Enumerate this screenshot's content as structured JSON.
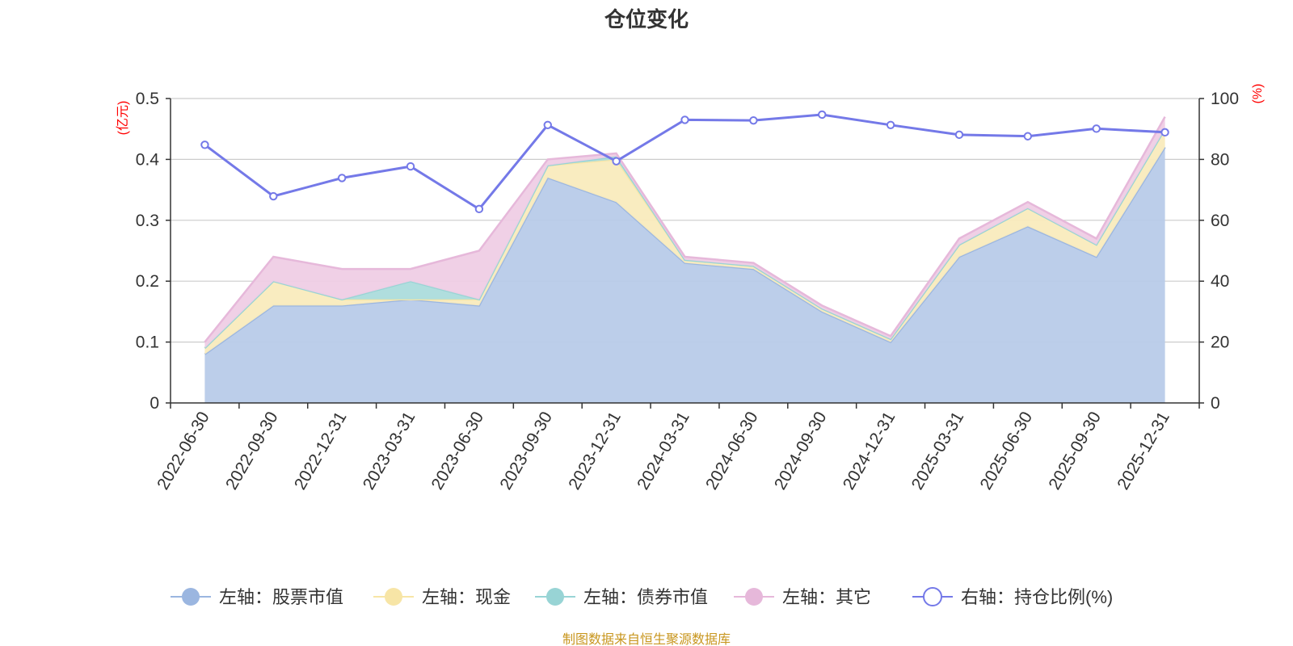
{
  "chart_data": {
    "type": "area",
    "title": "仓位变化",
    "left_axis": {
      "unit": "(亿元)",
      "ylim": [
        0,
        0.5
      ],
      "ticks": [
        "0",
        "0.1",
        "0.2",
        "0.3",
        "0.4",
        "0.5"
      ]
    },
    "right_axis": {
      "unit": "(%)",
      "ylim": [
        0,
        100
      ],
      "ticks": [
        "0",
        "20",
        "40",
        "60",
        "80",
        "100"
      ]
    },
    "categories": [
      "2022-06-30",
      "2022-09-30",
      "2022-12-31",
      "2023-03-31",
      "2023-06-30",
      "2023-09-30",
      "2023-12-31",
      "2024-03-31",
      "2024-06-30",
      "2024-09-30",
      "2024-12-31",
      "2025-03-31",
      "2025-06-30",
      "2025-09-30",
      "2025-12-31"
    ],
    "series": [
      {
        "name": "左轴：股票市值",
        "axis": "left",
        "kind": "stack",
        "color": "#9bb6e0",
        "fill": "#b8cbe9",
        "values": [
          0.08,
          0.16,
          0.16,
          0.17,
          0.16,
          0.37,
          0.33,
          0.23,
          0.22,
          0.15,
          0.1,
          0.24,
          0.29,
          0.24,
          0.42
        ]
      },
      {
        "name": "左轴：现金",
        "axis": "left",
        "kind": "stack",
        "color": "#f7e5a6",
        "fill": "#f9ebbd",
        "values": [
          0.01,
          0.04,
          0.01,
          0.0,
          0.01,
          0.02,
          0.07,
          0.005,
          0.005,
          0.005,
          0.005,
          0.02,
          0.03,
          0.02,
          0.03
        ]
      },
      {
        "name": "左轴：债券市值",
        "axis": "left",
        "kind": "stack",
        "color": "#98d4d5",
        "fill": "#acdcdc",
        "values": [
          0,
          0,
          0,
          0.03,
          0.0,
          0,
          0.005,
          0,
          0,
          0,
          0,
          0,
          0,
          0,
          0
        ]
      },
      {
        "name": "左轴：其它",
        "axis": "left",
        "kind": "stack",
        "color": "#e6b8da",
        "fill": "#efcde5",
        "values": [
          0.01,
          0.04,
          0.05,
          0.02,
          0.08,
          0.01,
          0.005,
          0.005,
          0.005,
          0.005,
          0.005,
          0.01,
          0.01,
          0.01,
          0.02
        ]
      },
      {
        "name": "右轴：持仓比例(%)",
        "axis": "right",
        "kind": "line",
        "color": "#7479e8",
        "values": [
          84.8,
          67.9,
          73.9,
          77.7,
          63.7,
          91.3,
          79.4,
          93.0,
          92.8,
          94.7,
          91.3,
          88.1,
          87.6,
          90.1,
          88.9
        ]
      }
    ],
    "grid": true,
    "legend_position": "bottom"
  },
  "source_note": "制图数据来自恒生聚源数据库",
  "colors": {
    "axis": "#333333",
    "grid": "#cccccc",
    "unit": "#ff0000",
    "source": "#c8961e",
    "background": "#ffffff"
  }
}
